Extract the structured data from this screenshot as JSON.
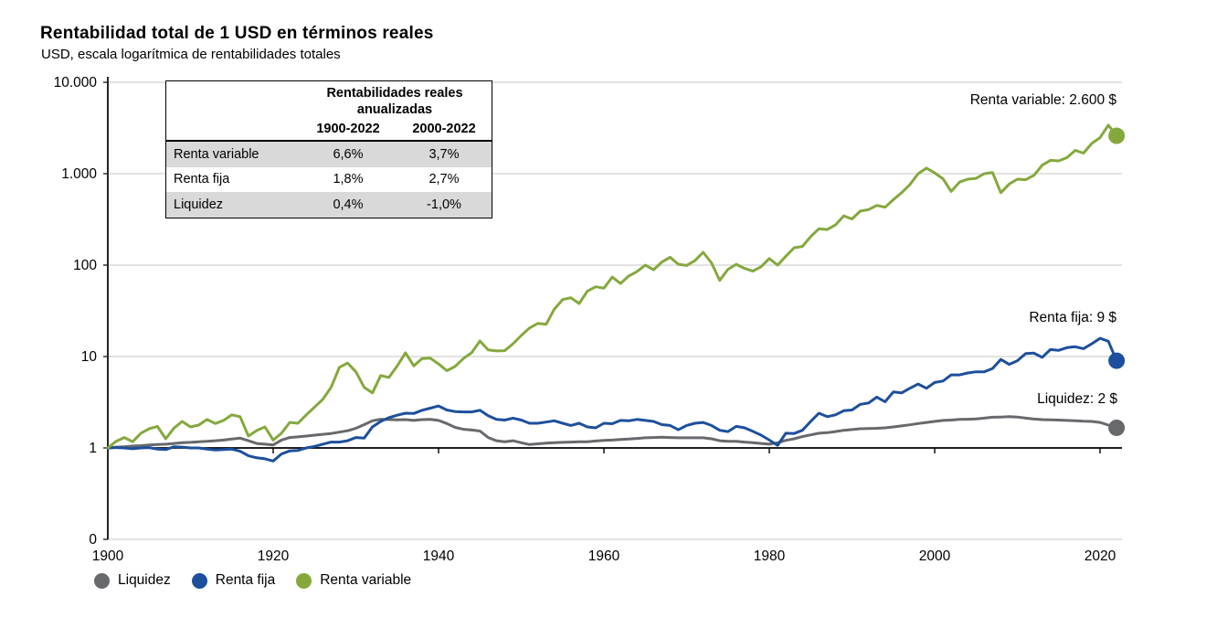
{
  "header": {
    "title": "Rentabilidad total de 1 USD en términos reales",
    "subtitle": "USD, escala logarítmica de rentabilidades totales"
  },
  "table": {
    "title_line1": "Rentabilidades reales",
    "title_line2": "anualizadas",
    "col_headers": [
      "1900-2022",
      "2000-2022"
    ],
    "rows": [
      {
        "label": "Renta variable",
        "values": [
          "6,6%",
          "3,7%"
        ]
      },
      {
        "label": "Renta fija",
        "values": [
          "1,8%",
          "2,7%"
        ]
      },
      {
        "label": "Liquidez",
        "values": [
          "0,4%",
          "-1,0%"
        ]
      }
    ]
  },
  "colors": {
    "equities": "#85a83d",
    "bonds": "#1d4f9c",
    "cash": "#67696c",
    "gridline": "#d9d9d9",
    "axis": "#262626",
    "baseline": "#000000",
    "table_row_shade": "#d9d9d9",
    "text": "#000000"
  },
  "chart_data": {
    "type": "line",
    "yscale": "log",
    "title": "Rentabilidad total de 1 USD en términos reales",
    "xlabel": "",
    "ylabel": "",
    "grid": "horizontal",
    "legend_position": "bottom",
    "xticks": [
      1900,
      1920,
      1940,
      1960,
      1980,
      2000,
      2020
    ],
    "yticks": [
      {
        "label": "10.000",
        "value": 10000
      },
      {
        "label": "1.000",
        "value": 1000
      },
      {
        "label": "100",
        "value": 100
      },
      {
        "label": "10",
        "value": 10
      },
      {
        "label": "1",
        "value": 1
      },
      {
        "label": "0",
        "value": 0
      }
    ],
    "years": [
      1900,
      1901,
      1902,
      1903,
      1904,
      1905,
      1906,
      1907,
      1908,
      1909,
      1910,
      1911,
      1912,
      1913,
      1914,
      1915,
      1916,
      1917,
      1918,
      1919,
      1920,
      1921,
      1922,
      1923,
      1924,
      1925,
      1926,
      1927,
      1928,
      1929,
      1930,
      1931,
      1932,
      1933,
      1934,
      1935,
      1936,
      1937,
      1938,
      1939,
      1940,
      1941,
      1942,
      1943,
      1944,
      1945,
      1946,
      1947,
      1948,
      1949,
      1950,
      1951,
      1952,
      1953,
      1954,
      1955,
      1956,
      1957,
      1958,
      1959,
      1960,
      1961,
      1962,
      1963,
      1964,
      1965,
      1966,
      1967,
      1968,
      1969,
      1970,
      1971,
      1972,
      1973,
      1974,
      1975,
      1976,
      1977,
      1978,
      1979,
      1980,
      1981,
      1982,
      1983,
      1984,
      1985,
      1986,
      1987,
      1988,
      1989,
      1990,
      1991,
      1992,
      1993,
      1994,
      1995,
      1996,
      1997,
      1998,
      1999,
      2000,
      2001,
      2002,
      2003,
      2004,
      2005,
      2006,
      2007,
      2008,
      2009,
      2010,
      2011,
      2012,
      2013,
      2014,
      2015,
      2016,
      2017,
      2018,
      2019,
      2020,
      2021,
      2022
    ],
    "series": [
      {
        "name": "Liquidez",
        "color": "#67696c",
        "end_label": "Liquidez: 2 $",
        "values": [
          1.0,
          1.02,
          1.03,
          1.05,
          1.06,
          1.08,
          1.09,
          1.1,
          1.12,
          1.14,
          1.15,
          1.17,
          1.18,
          1.2,
          1.22,
          1.25,
          1.28,
          1.2,
          1.12,
          1.1,
          1.08,
          1.22,
          1.3,
          1.32,
          1.35,
          1.38,
          1.41,
          1.44,
          1.49,
          1.54,
          1.64,
          1.8,
          1.98,
          2.06,
          2.04,
          2.03,
          2.04,
          2.0,
          2.04,
          2.05,
          2.0,
          1.85,
          1.68,
          1.6,
          1.57,
          1.53,
          1.3,
          1.2,
          1.17,
          1.2,
          1.14,
          1.09,
          1.11,
          1.13,
          1.14,
          1.15,
          1.16,
          1.17,
          1.17,
          1.19,
          1.21,
          1.22,
          1.24,
          1.25,
          1.27,
          1.29,
          1.3,
          1.31,
          1.3,
          1.29,
          1.29,
          1.29,
          1.29,
          1.26,
          1.2,
          1.18,
          1.18,
          1.16,
          1.14,
          1.12,
          1.1,
          1.14,
          1.21,
          1.26,
          1.33,
          1.39,
          1.45,
          1.47,
          1.51,
          1.56,
          1.59,
          1.62,
          1.63,
          1.64,
          1.66,
          1.7,
          1.74,
          1.79,
          1.85,
          1.9,
          1.95,
          2.0,
          2.02,
          2.05,
          2.06,
          2.08,
          2.12,
          2.17,
          2.18,
          2.2,
          2.18,
          2.12,
          2.07,
          2.04,
          2.03,
          2.02,
          2.0,
          1.98,
          1.96,
          1.95,
          1.9,
          1.78,
          1.66
        ]
      },
      {
        "name": "Renta fija",
        "color": "#1d4f9c",
        "end_label": "Renta fija: 9 $",
        "values": [
          1.0,
          1.01,
          1.0,
          0.98,
          1.0,
          1.01,
          0.97,
          0.96,
          1.03,
          1.02,
          1.0,
          1.0,
          0.97,
          0.95,
          0.96,
          0.97,
          0.92,
          0.82,
          0.78,
          0.76,
          0.72,
          0.86,
          0.93,
          0.94,
          1.0,
          1.04,
          1.1,
          1.16,
          1.16,
          1.2,
          1.3,
          1.28,
          1.7,
          1.95,
          2.15,
          2.28,
          2.4,
          2.38,
          2.58,
          2.72,
          2.88,
          2.6,
          2.5,
          2.48,
          2.48,
          2.58,
          2.25,
          2.05,
          2.02,
          2.12,
          2.02,
          1.86,
          1.86,
          1.92,
          1.98,
          1.86,
          1.76,
          1.86,
          1.7,
          1.66,
          1.86,
          1.84,
          2.0,
          1.98,
          2.05,
          2.0,
          1.95,
          1.8,
          1.76,
          1.58,
          1.76,
          1.86,
          1.9,
          1.76,
          1.56,
          1.51,
          1.72,
          1.66,
          1.52,
          1.38,
          1.22,
          1.07,
          1.45,
          1.44,
          1.56,
          1.95,
          2.4,
          2.2,
          2.3,
          2.55,
          2.6,
          3.0,
          3.1,
          3.6,
          3.2,
          4.1,
          4.0,
          4.5,
          5.0,
          4.5,
          5.2,
          5.4,
          6.3,
          6.3,
          6.6,
          6.8,
          6.8,
          7.4,
          9.3,
          8.2,
          9.0,
          10.8,
          10.9,
          9.8,
          11.9,
          11.7,
          12.5,
          12.8,
          12.2,
          13.8,
          15.8,
          14.7,
          9.0
        ]
      },
      {
        "name": "Renta variable",
        "color": "#85a83d",
        "end_label": "Renta variable: 2.600 $",
        "values": [
          1.0,
          1.18,
          1.3,
          1.17,
          1.45,
          1.62,
          1.72,
          1.26,
          1.65,
          1.95,
          1.7,
          1.78,
          2.05,
          1.85,
          2.0,
          2.3,
          2.2,
          1.35,
          1.55,
          1.7,
          1.22,
          1.45,
          1.9,
          1.86,
          2.3,
          2.8,
          3.4,
          4.6,
          7.6,
          8.5,
          6.8,
          4.6,
          4.0,
          6.2,
          5.9,
          7.9,
          11.0,
          7.9,
          9.5,
          9.6,
          8.3,
          7.0,
          7.8,
          9.5,
          11.0,
          14.8,
          11.8,
          11.5,
          11.6,
          13.8,
          17.0,
          20.5,
          23.0,
          22.5,
          33.0,
          42.0,
          44.0,
          38.0,
          52.0,
          58.0,
          56.0,
          74.0,
          63.0,
          76.0,
          85.0,
          100.0,
          89.0,
          108.0,
          122.0,
          102.0,
          99.0,
          112.0,
          138.0,
          106.0,
          68.0,
          90.0,
          102.0,
          92.0,
          86.0,
          96.0,
          118.0,
          100.0,
          125.0,
          155.0,
          160.0,
          205.0,
          250.0,
          245.0,
          275.0,
          345.0,
          320.0,
          390.0,
          405.0,
          450.0,
          430.0,
          520.0,
          620.0,
          760.0,
          1000.0,
          1150.0,
          1020.0,
          880.0,
          640.0,
          810.0,
          870.0,
          890.0,
          1000.0,
          1030.0,
          620.0,
          770.0,
          870.0,
          860.0,
          960.0,
          1240.0,
          1400.0,
          1380.0,
          1500.0,
          1800.0,
          1680.0,
          2150.0,
          2480.0,
          3400.0,
          2600.0
        ]
      }
    ]
  }
}
